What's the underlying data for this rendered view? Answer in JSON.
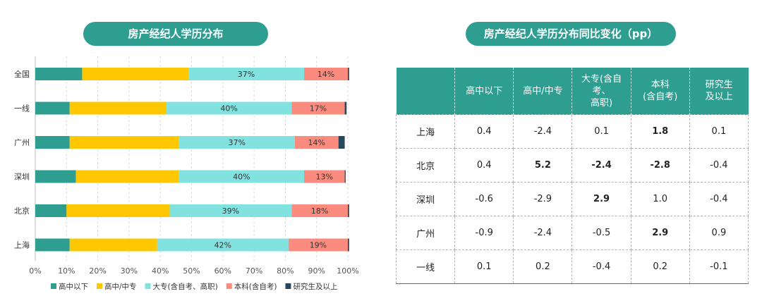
{
  "left_title": "房产经纪人学历分布",
  "right_title": "房产经纪人学历分布同比变化（pp）",
  "chart_data": {
    "type": "bar",
    "orientation": "horizontal",
    "stacked": true,
    "categories": [
      "全国",
      "一线",
      "广州",
      "深圳",
      "北京",
      "上海"
    ],
    "series": [
      {
        "name": "高中以下",
        "color": "#2e9e90",
        "values": [
          15,
          11,
          11,
          13,
          10,
          11
        ]
      },
      {
        "name": "高中/中专",
        "color": "#ffc700",
        "values": [
          34,
          31,
          35,
          33,
          33,
          28
        ]
      },
      {
        "name": "大专(含自考、高职)",
        "color": "#82e2e0",
        "values": [
          37,
          40,
          37,
          40,
          39,
          42
        ]
      },
      {
        "name": "本科(含自考)",
        "color": "#fa8b7e",
        "values": [
          14,
          17,
          14,
          13,
          18,
          19
        ]
      },
      {
        "name": "研究生及以上",
        "color": "#29475a",
        "values": [
          0.4,
          0.6,
          2,
          0.3,
          0.4,
          0.4
        ]
      }
    ],
    "data_labels": {
      "大专(含自考、高职)": [
        "37%",
        "40%",
        "37%",
        "40%",
        "39%",
        "42%"
      ],
      "本科(含自考)": [
        "14%",
        "17%",
        "14%",
        "13%",
        "18%",
        "19%"
      ]
    },
    "x_ticks": [
      "0%",
      "10%",
      "20%",
      "30%",
      "40%",
      "50%",
      "60%",
      "70%",
      "80%",
      "90%",
      "100%"
    ],
    "xlim": [
      0,
      100
    ],
    "grid": true,
    "legend_position": "bottom"
  },
  "table": {
    "headers": [
      "",
      "高中以下",
      "高中/中专",
      "大专(含自考、\n高职)",
      "本科\n(含自考)",
      "研究生\n及以上"
    ],
    "rows": [
      {
        "city": "上海",
        "values": [
          "0.4",
          "-2.4",
          "0.1",
          "1.8",
          "0.1"
        ],
        "bold": [
          false,
          false,
          false,
          true,
          false
        ]
      },
      {
        "city": "北京",
        "values": [
          "0.4",
          "5.2",
          "-2.4",
          "-2.8",
          "-0.4"
        ],
        "bold": [
          false,
          true,
          true,
          true,
          false
        ]
      },
      {
        "city": "深圳",
        "values": [
          "-0.6",
          "-2.9",
          "2.9",
          "1.0",
          "-0.4"
        ],
        "bold": [
          false,
          false,
          true,
          false,
          false
        ]
      },
      {
        "city": "广州",
        "values": [
          "-0.9",
          "-2.4",
          "-0.5",
          "2.9",
          "0.9"
        ],
        "bold": [
          false,
          false,
          false,
          true,
          false
        ]
      },
      {
        "city": "一线",
        "values": [
          "0.1",
          "0.2",
          "-0.4",
          "0.2",
          "-0.1"
        ],
        "bold": [
          false,
          false,
          false,
          false,
          false
        ]
      }
    ]
  }
}
